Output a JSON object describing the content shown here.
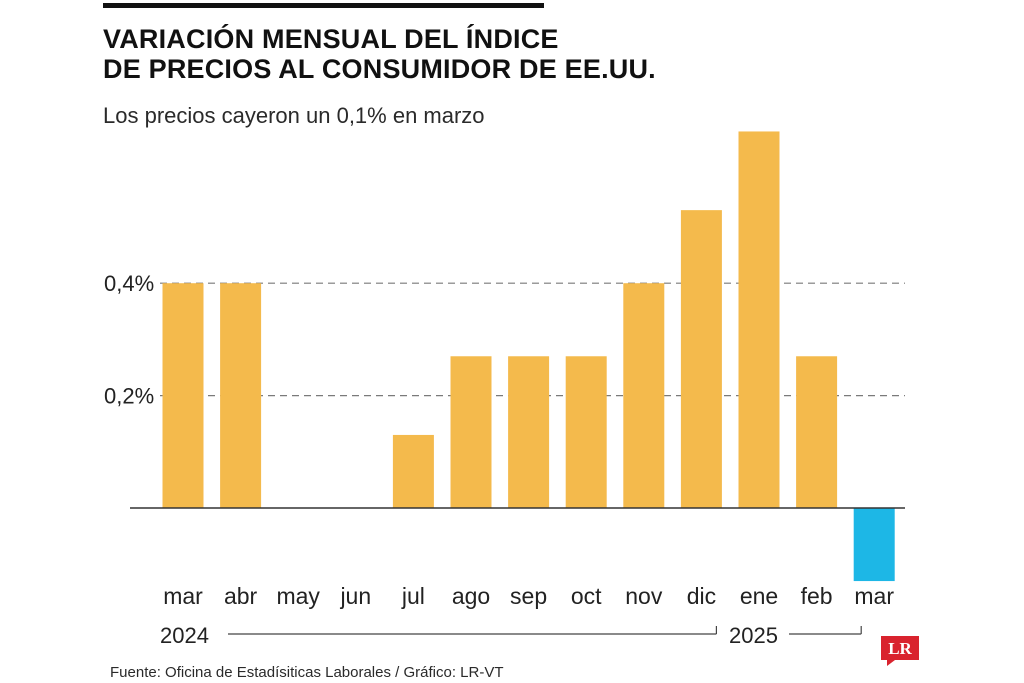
{
  "header": {
    "title_line1": "VARIACIÓN MENSUAL DEL ÍNDICE",
    "title_line2": "DE PRECIOS AL CONSUMIDOR DE EE.UU.",
    "subtitle": "Los precios cayeron un 0,1% en marzo"
  },
  "footer": {
    "source": "Fuente: Oficina de Estadísiticas Laborales / Gráfico: LR-VT",
    "logo_text": "LR"
  },
  "colors": {
    "positive": "#F4BA4C",
    "negative": "#1DB7E6",
    "logo": "#D9232E"
  },
  "chart_data": {
    "type": "bar",
    "title": "VARIACIÓN MENSUAL DEL ÍNDICE DE PRECIOS AL CONSUMIDOR DE EE.UU.",
    "subtitle": "Los precios cayeron un 0,1% en marzo",
    "categories": [
      "mar",
      "abr",
      "may",
      "jun",
      "jul",
      "ago",
      "sep",
      "oct",
      "nov",
      "dic",
      "ene",
      "feb",
      "mar"
    ],
    "values": [
      0.4,
      0.4,
      0.0,
      0.0,
      0.13,
      0.27,
      0.27,
      0.27,
      0.4,
      0.53,
      0.67,
      0.27,
      -0.13
    ],
    "yticks": [
      {
        "value": 0.4,
        "label": "0,4%"
      },
      {
        "value": 0.2,
        "label": "0,2%"
      }
    ],
    "years": [
      {
        "label": "2024",
        "from": 0,
        "to": 9
      },
      {
        "label": "2025",
        "from": 10,
        "to": 12
      }
    ],
    "ylim": [
      -0.13,
      0.67
    ],
    "grid": true,
    "gridStyle": "dashed"
  }
}
